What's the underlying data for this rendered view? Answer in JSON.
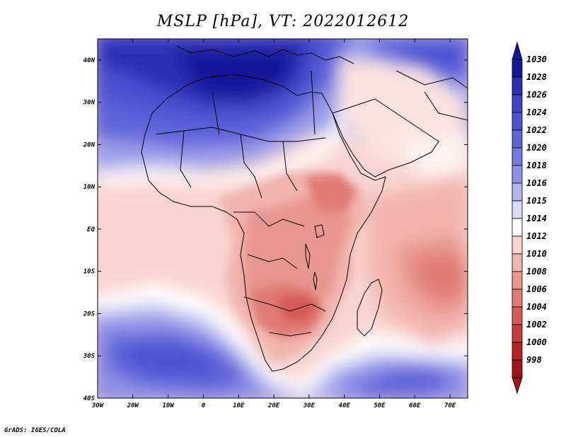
{
  "title": "MSLP [hPa], VT: 2022012612",
  "credit": "GrADS: IGES/COLA",
  "x_ticks": [
    "30W",
    "20W",
    "10W",
    "0",
    "10E",
    "20E",
    "30E",
    "40E",
    "50E",
    "60E",
    "70E"
  ],
  "y_ticks": [
    "40N",
    "30N",
    "20N",
    "10N",
    "EQ",
    "10S",
    "20S",
    "30S",
    "40S"
  ],
  "legend": {
    "levels": [
      "1030",
      "1028",
      "1026",
      "1024",
      "1022",
      "1020",
      "1018",
      "1016",
      "1015",
      "1014",
      "1012",
      "1010",
      "1008",
      "1006",
      "1004",
      "1002",
      "1000",
      "998"
    ],
    "colors": [
      "#151896",
      "#2a2fb4",
      "#3e43c8",
      "#4d51d0",
      "#6064d8",
      "#7478e0",
      "#8e90e6",
      "#b2b4ee",
      "#d8d9f6",
      "#ffffff",
      "#f8d4d0",
      "#f2b4ae",
      "#e89690",
      "#e07a74",
      "#d65a56",
      "#c83c3a",
      "#b82224",
      "#a01418"
    ]
  },
  "map_colors": {
    "very_high": "#2a2fb4",
    "high": "#5a5ed6",
    "mid_high": "#9c9fea",
    "neutral": "#ffffff",
    "mid_low": "#f6cdc8",
    "low": "#ee aaa4",
    "lower": "#e08c86",
    "lowest": "#d66860",
    "coast": "#000000"
  }
}
